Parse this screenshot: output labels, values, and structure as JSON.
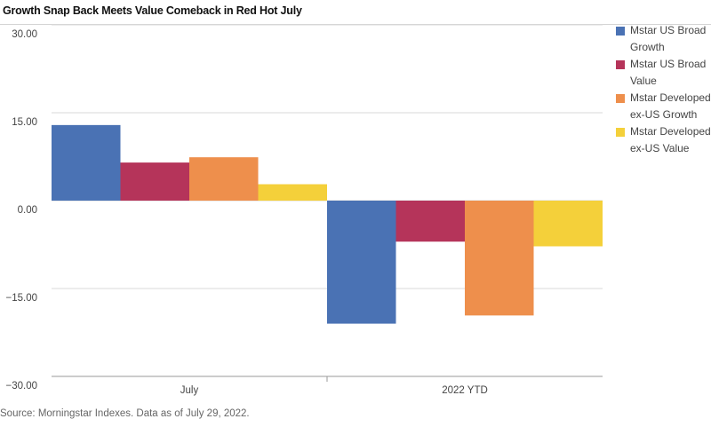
{
  "title": "Growth Snap Back Meets Value Comeback in Red Hot July",
  "source": "Source: Morningstar Indexes. Data as of July 29, 2022.",
  "chart_data": {
    "type": "bar",
    "categories": [
      "July",
      "2022 YTD"
    ],
    "series": [
      {
        "name": "Mstar US Broad Growth",
        "values": [
          12.9,
          -21.0
        ],
        "color": "#4A72B4"
      },
      {
        "name": "Mstar US Broad Value",
        "values": [
          6.5,
          -7.0
        ],
        "color": "#B5345A"
      },
      {
        "name": "Mstar Developed ex-US Growth",
        "values": [
          7.4,
          -19.6
        ],
        "color": "#EE8F4C"
      },
      {
        "name": "Mstar Developed ex-US Value",
        "values": [
          2.8,
          -7.8
        ],
        "color": "#F4D03A"
      }
    ],
    "yticks": [
      "30.00",
      "15.00",
      "0.00",
      "−15.00",
      "−30.00"
    ],
    "ytick_values": [
      30,
      15,
      0,
      -15,
      -30
    ],
    "ylim": [
      -30,
      30
    ],
    "xlabel": "",
    "ylabel": "",
    "grid": true,
    "legend_position": "right"
  }
}
